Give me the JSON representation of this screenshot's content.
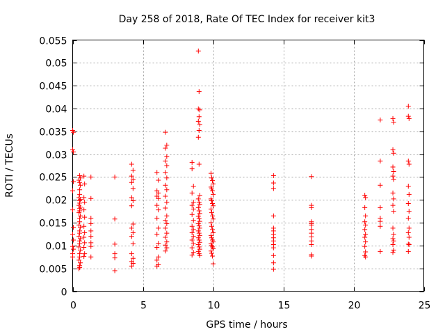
{
  "chart_data": {
    "type": "scatter",
    "title": "Day 258 of 2018, Rate Of TEC Index for receiver kit3",
    "xlabel": "GPS time / hours",
    "ylabel": "ROTI / TECUs",
    "xlim": [
      0,
      25
    ],
    "ylim": [
      0,
      0.055
    ],
    "x_ticks": [
      0,
      5,
      10,
      15,
      20,
      25
    ],
    "x_tick_labels": [
      "0",
      "5",
      "10",
      "15",
      "20",
      "25"
    ],
    "y_ticks": [
      0,
      0.005,
      0.01,
      0.015,
      0.02,
      0.025,
      0.03,
      0.035,
      0.04,
      0.045,
      0.05,
      0.055
    ],
    "y_tick_labels": [
      "0",
      "0.005",
      "0.01",
      "0.015",
      "0.02",
      "0.025",
      "0.03",
      "0.035",
      "0.04",
      "0.045",
      "0.05",
      "0.055"
    ],
    "grid": true,
    "marker": "+",
    "color": "#ff0000",
    "series": [
      {
        "name": "ROTI",
        "points": [
          [
            0.0,
            0.0352
          ],
          [
            0.05,
            0.0348
          ],
          [
            0.0,
            0.031
          ],
          [
            0.05,
            0.0305
          ],
          [
            0.05,
            0.024
          ],
          [
            0.0,
            0.022
          ],
          [
            0.0,
            0.0178
          ],
          [
            0.05,
            0.014
          ],
          [
            0.0,
            0.0125
          ],
          [
            0.05,
            0.0112
          ],
          [
            0.0,
            0.0098
          ],
          [
            0.05,
            0.0092
          ],
          [
            0.0,
            0.0082
          ],
          [
            0.0,
            0.0075
          ],
          [
            0.5,
            0.0253
          ],
          [
            0.55,
            0.0248
          ],
          [
            0.45,
            0.0243
          ],
          [
            0.5,
            0.0238
          ],
          [
            0.55,
            0.0232
          ],
          [
            0.5,
            0.0222
          ],
          [
            0.5,
            0.0212
          ],
          [
            0.45,
            0.0205
          ],
          [
            0.55,
            0.0201
          ],
          [
            0.5,
            0.0198
          ],
          [
            0.5,
            0.0193
          ],
          [
            0.45,
            0.0188
          ],
          [
            0.55,
            0.0184
          ],
          [
            0.5,
            0.0181
          ],
          [
            0.5,
            0.0176
          ],
          [
            0.45,
            0.0172
          ],
          [
            0.55,
            0.0165
          ],
          [
            0.5,
            0.016
          ],
          [
            0.5,
            0.0152
          ],
          [
            0.45,
            0.0145
          ],
          [
            0.55,
            0.014
          ],
          [
            0.5,
            0.0132
          ],
          [
            0.5,
            0.0127
          ],
          [
            0.45,
            0.012
          ],
          [
            0.55,
            0.0115
          ],
          [
            0.5,
            0.011
          ],
          [
            0.5,
            0.0104
          ],
          [
            0.45,
            0.0097
          ],
          [
            0.55,
            0.009
          ],
          [
            0.5,
            0.0082
          ],
          [
            0.5,
            0.0075
          ],
          [
            0.45,
            0.0068
          ],
          [
            0.55,
            0.0062
          ],
          [
            0.5,
            0.0056
          ],
          [
            0.5,
            0.0052
          ],
          [
            0.45,
            0.0049
          ],
          [
            0.8,
            0.0252
          ],
          [
            0.85,
            0.0235
          ],
          [
            0.8,
            0.0205
          ],
          [
            0.85,
            0.0195
          ],
          [
            0.8,
            0.0178
          ],
          [
            0.85,
            0.0162
          ],
          [
            0.8,
            0.0142
          ],
          [
            0.85,
            0.0128
          ],
          [
            0.8,
            0.0118
          ],
          [
            0.85,
            0.0106
          ],
          [
            0.8,
            0.0096
          ],
          [
            0.85,
            0.0082
          ],
          [
            0.8,
            0.0076
          ],
          [
            1.3,
            0.025
          ],
          [
            1.3,
            0.0203
          ],
          [
            1.3,
            0.016
          ],
          [
            1.3,
            0.0148
          ],
          [
            1.3,
            0.0132
          ],
          [
            1.3,
            0.012
          ],
          [
            1.3,
            0.0106
          ],
          [
            1.3,
            0.0098
          ],
          [
            1.3,
            0.0075
          ],
          [
            3.0,
            0.025
          ],
          [
            3.0,
            0.0158
          ],
          [
            3.0,
            0.0103
          ],
          [
            3.0,
            0.0082
          ],
          [
            3.0,
            0.0073
          ],
          [
            3.0,
            0.0045
          ],
          [
            4.2,
            0.0278
          ],
          [
            4.3,
            0.0265
          ],
          [
            4.2,
            0.0252
          ],
          [
            4.3,
            0.0245
          ],
          [
            4.2,
            0.0238
          ],
          [
            4.3,
            0.0225
          ],
          [
            4.2,
            0.0205
          ],
          [
            4.3,
            0.0198
          ],
          [
            4.2,
            0.0187
          ],
          [
            4.3,
            0.0147
          ],
          [
            4.2,
            0.0138
          ],
          [
            4.3,
            0.0128
          ],
          [
            4.2,
            0.012
          ],
          [
            4.3,
            0.0104
          ],
          [
            4.2,
            0.0082
          ],
          [
            4.3,
            0.0072
          ],
          [
            4.2,
            0.0065
          ],
          [
            4.3,
            0.0061
          ],
          [
            4.2,
            0.0055
          ],
          [
            6.0,
            0.026
          ],
          [
            6.1,
            0.0243
          ],
          [
            6.0,
            0.022
          ],
          [
            6.1,
            0.0215
          ],
          [
            6.0,
            0.0208
          ],
          [
            6.1,
            0.0203
          ],
          [
            6.0,
            0.0188
          ],
          [
            6.1,
            0.0178
          ],
          [
            6.0,
            0.016
          ],
          [
            6.1,
            0.0138
          ],
          [
            6.0,
            0.0125
          ],
          [
            6.1,
            0.0105
          ],
          [
            6.0,
            0.0096
          ],
          [
            6.1,
            0.0075
          ],
          [
            6.0,
            0.0068
          ],
          [
            6.1,
            0.0058
          ],
          [
            6.0,
            0.0055
          ],
          [
            6.6,
            0.0348
          ],
          [
            6.7,
            0.032
          ],
          [
            6.6,
            0.0313
          ],
          [
            6.7,
            0.0295
          ],
          [
            6.6,
            0.0285
          ],
          [
            6.7,
            0.0275
          ],
          [
            6.6,
            0.026
          ],
          [
            6.7,
            0.0248
          ],
          [
            6.6,
            0.0232
          ],
          [
            6.7,
            0.0222
          ],
          [
            6.6,
            0.0208
          ],
          [
            6.7,
            0.0195
          ],
          [
            6.6,
            0.0182
          ],
          [
            6.7,
            0.0165
          ],
          [
            6.6,
            0.0155
          ],
          [
            6.7,
            0.0148
          ],
          [
            6.6,
            0.0138
          ],
          [
            6.7,
            0.0127
          ],
          [
            6.6,
            0.0118
          ],
          [
            6.7,
            0.0108
          ],
          [
            6.6,
            0.0101
          ],
          [
            6.7,
            0.0095
          ],
          [
            6.6,
            0.0088
          ],
          [
            8.5,
            0.0282
          ],
          [
            8.5,
            0.0268
          ],
          [
            8.6,
            0.023
          ],
          [
            8.5,
            0.0215
          ],
          [
            8.6,
            0.0195
          ],
          [
            8.5,
            0.0188
          ],
          [
            8.6,
            0.018
          ],
          [
            8.5,
            0.0168
          ],
          [
            8.6,
            0.0155
          ],
          [
            8.5,
            0.0142
          ],
          [
            8.6,
            0.0135
          ],
          [
            8.5,
            0.0128
          ],
          [
            8.6,
            0.012
          ],
          [
            8.5,
            0.0112
          ],
          [
            8.6,
            0.0104
          ],
          [
            8.5,
            0.0095
          ],
          [
            8.6,
            0.0085
          ],
          [
            8.5,
            0.0079
          ],
          [
            8.95,
            0.0526
          ],
          [
            9.0,
            0.0437
          ],
          [
            8.95,
            0.0399
          ],
          [
            9.05,
            0.0397
          ],
          [
            9.0,
            0.0382
          ],
          [
            8.95,
            0.0372
          ],
          [
            9.05,
            0.0365
          ],
          [
            9.0,
            0.0352
          ],
          [
            8.95,
            0.0337
          ],
          [
            9.0,
            0.0278
          ],
          [
            9.05,
            0.021
          ],
          [
            8.95,
            0.0202
          ],
          [
            9.0,
            0.0195
          ],
          [
            9.05,
            0.019
          ],
          [
            8.95,
            0.0183
          ],
          [
            9.0,
            0.0176
          ],
          [
            9.05,
            0.017
          ],
          [
            8.95,
            0.0164
          ],
          [
            9.0,
            0.0159
          ],
          [
            9.05,
            0.0153
          ],
          [
            8.95,
            0.0148
          ],
          [
            9.0,
            0.0143
          ],
          [
            9.05,
            0.0138
          ],
          [
            8.95,
            0.0132
          ],
          [
            9.0,
            0.0127
          ],
          [
            9.05,
            0.0122
          ],
          [
            8.95,
            0.0117
          ],
          [
            9.0,
            0.0112
          ],
          [
            9.05,
            0.0107
          ],
          [
            8.95,
            0.0102
          ],
          [
            9.0,
            0.0097
          ],
          [
            9.05,
            0.0092
          ],
          [
            8.95,
            0.0087
          ],
          [
            9.0,
            0.0082
          ],
          [
            9.05,
            0.0078
          ],
          [
            9.85,
            0.0258
          ],
          [
            9.9,
            0.0248
          ],
          [
            9.95,
            0.0242
          ],
          [
            10.0,
            0.0235
          ],
          [
            9.85,
            0.0228
          ],
          [
            9.9,
            0.0224
          ],
          [
            9.95,
            0.022
          ],
          [
            10.0,
            0.0212
          ],
          [
            9.85,
            0.0202
          ],
          [
            9.9,
            0.0198
          ],
          [
            9.95,
            0.0192
          ],
          [
            10.0,
            0.0187
          ],
          [
            9.85,
            0.018
          ],
          [
            9.9,
            0.0172
          ],
          [
            9.95,
            0.0165
          ],
          [
            10.0,
            0.0158
          ],
          [
            9.85,
            0.015
          ],
          [
            9.9,
            0.0142
          ],
          [
            9.95,
            0.0135
          ],
          [
            10.0,
            0.0128
          ],
          [
            9.85,
            0.0122
          ],
          [
            9.9,
            0.0117
          ],
          [
            9.95,
            0.0112
          ],
          [
            10.0,
            0.0108
          ],
          [
            9.85,
            0.0104
          ],
          [
            9.9,
            0.01
          ],
          [
            9.95,
            0.0097
          ],
          [
            10.0,
            0.0093
          ],
          [
            9.85,
            0.0088
          ],
          [
            9.9,
            0.0083
          ],
          [
            9.95,
            0.0077
          ],
          [
            10.0,
            0.006
          ],
          [
            14.3,
            0.0253
          ],
          [
            14.3,
            0.0237
          ],
          [
            14.3,
            0.0225
          ],
          [
            14.3,
            0.0165
          ],
          [
            14.3,
            0.0138
          ],
          [
            14.3,
            0.0132
          ],
          [
            14.3,
            0.0125
          ],
          [
            14.3,
            0.0117
          ],
          [
            14.3,
            0.011
          ],
          [
            14.3,
            0.0102
          ],
          [
            14.3,
            0.0095
          ],
          [
            14.3,
            0.0078
          ],
          [
            14.3,
            0.0062
          ],
          [
            14.3,
            0.0048
          ],
          [
            17.0,
            0.0251
          ],
          [
            17.0,
            0.0188
          ],
          [
            17.0,
            0.0183
          ],
          [
            17.0,
            0.0152
          ],
          [
            17.0,
            0.0148
          ],
          [
            17.0,
            0.0145
          ],
          [
            17.0,
            0.0135
          ],
          [
            17.0,
            0.0127
          ],
          [
            17.0,
            0.0119
          ],
          [
            17.0,
            0.011
          ],
          [
            17.0,
            0.0102
          ],
          [
            17.0,
            0.008
          ],
          [
            17.0,
            0.0077
          ],
          [
            20.8,
            0.021
          ],
          [
            20.85,
            0.0205
          ],
          [
            20.8,
            0.0183
          ],
          [
            20.85,
            0.0165
          ],
          [
            20.8,
            0.0152
          ],
          [
            20.85,
            0.0145
          ],
          [
            20.8,
            0.0135
          ],
          [
            20.85,
            0.0125
          ],
          [
            20.8,
            0.0118
          ],
          [
            20.85,
            0.0108
          ],
          [
            20.8,
            0.0098
          ],
          [
            20.85,
            0.0086
          ],
          [
            20.8,
            0.0078
          ],
          [
            20.85,
            0.0075
          ],
          [
            21.9,
            0.0375
          ],
          [
            21.9,
            0.0285
          ],
          [
            21.9,
            0.0232
          ],
          [
            21.9,
            0.0183
          ],
          [
            21.9,
            0.016
          ],
          [
            21.9,
            0.0153
          ],
          [
            21.9,
            0.0142
          ],
          [
            21.9,
            0.0087
          ],
          [
            22.8,
            0.0378
          ],
          [
            22.85,
            0.037
          ],
          [
            22.8,
            0.031
          ],
          [
            22.85,
            0.0302
          ],
          [
            22.8,
            0.0272
          ],
          [
            22.85,
            0.0262
          ],
          [
            22.8,
            0.0252
          ],
          [
            22.85,
            0.0245
          ],
          [
            22.8,
            0.0215
          ],
          [
            22.85,
            0.0202
          ],
          [
            22.8,
            0.0188
          ],
          [
            22.85,
            0.0175
          ],
          [
            22.8,
            0.0138
          ],
          [
            22.85,
            0.0125
          ],
          [
            22.8,
            0.0115
          ],
          [
            22.85,
            0.011
          ],
          [
            22.8,
            0.0102
          ],
          [
            22.85,
            0.009
          ],
          [
            22.8,
            0.0085
          ],
          [
            23.9,
            0.0405
          ],
          [
            23.9,
            0.0383
          ],
          [
            23.95,
            0.0378
          ],
          [
            23.9,
            0.0285
          ],
          [
            23.95,
            0.0278
          ],
          [
            23.9,
            0.023
          ],
          [
            23.95,
            0.0212
          ],
          [
            23.9,
            0.0192
          ],
          [
            23.95,
            0.0175
          ],
          [
            23.9,
            0.016
          ],
          [
            23.95,
            0.0138
          ],
          [
            23.9,
            0.0128
          ],
          [
            23.95,
            0.0118
          ],
          [
            23.9,
            0.0103
          ],
          [
            23.95,
            0.0102
          ],
          [
            23.9,
            0.0087
          ]
        ]
      }
    ]
  }
}
